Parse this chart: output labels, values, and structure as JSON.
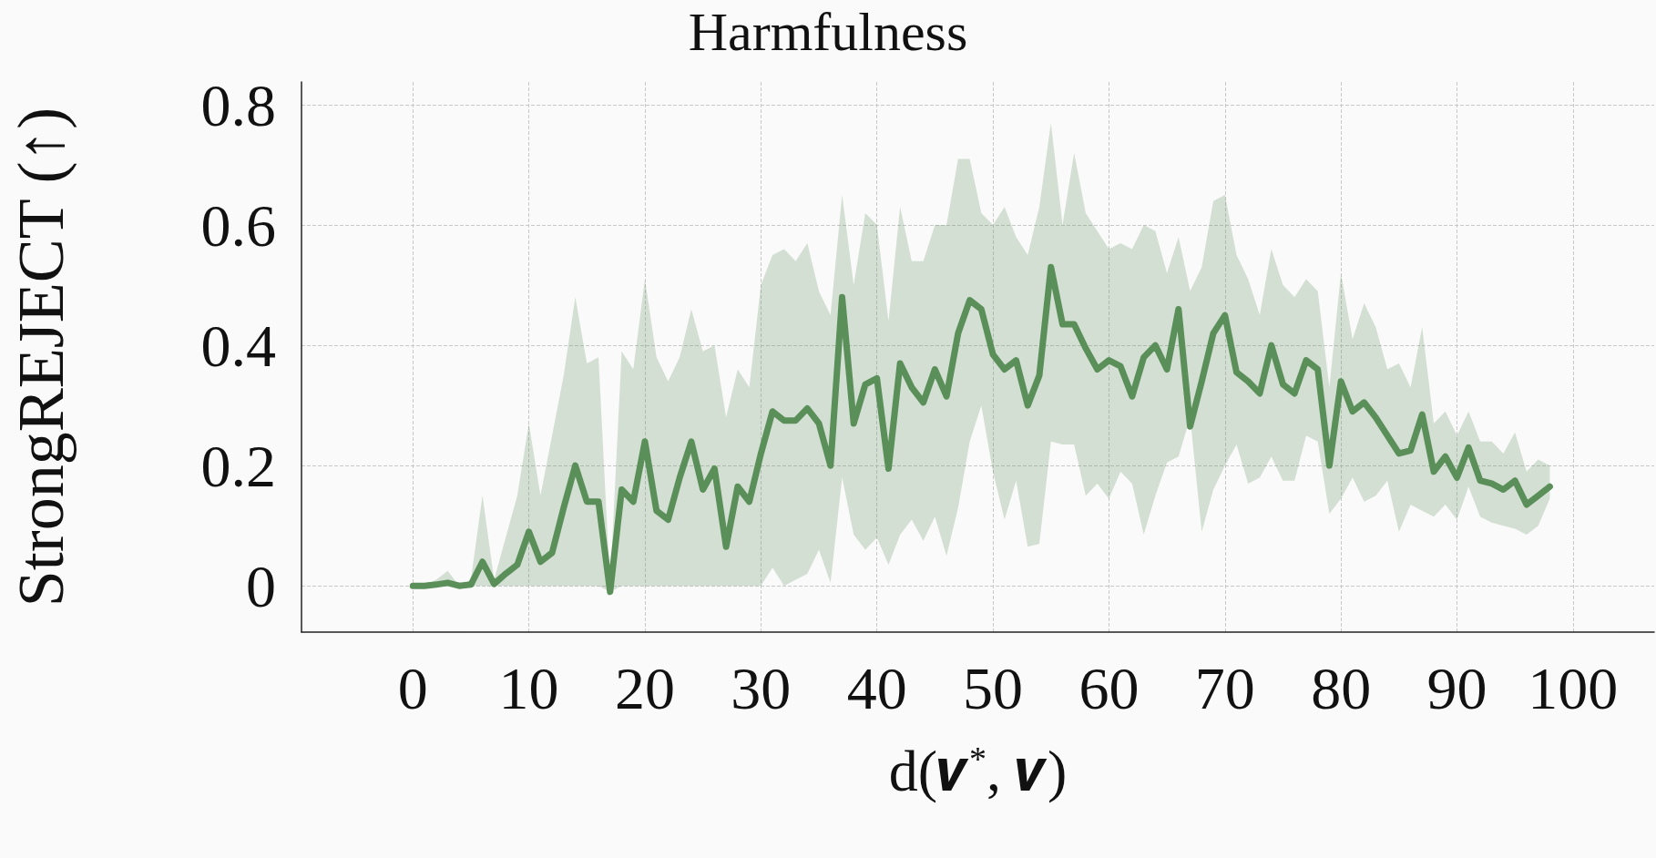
{
  "chart_data": {
    "type": "line",
    "title": "Harmfulness",
    "xlabel": "d(𝒗$^{*}$, 𝒗)",
    "ylabel": "StrongREJECT (↑)",
    "x": [
      0,
      1,
      2,
      3,
      4,
      5,
      6,
      7,
      8,
      9,
      10,
      11,
      12,
      13,
      14,
      15,
      16,
      17,
      18,
      19,
      20,
      21,
      22,
      23,
      24,
      25,
      26,
      27,
      28,
      29,
      30,
      31,
      32,
      33,
      34,
      35,
      36,
      37,
      38,
      39,
      40,
      41,
      42,
      43,
      44,
      45,
      46,
      47,
      48,
      49,
      50,
      51,
      52,
      53,
      54,
      55,
      56,
      57,
      58,
      59,
      60,
      61,
      62,
      63,
      64,
      65,
      66,
      67,
      68,
      69,
      70,
      71,
      72,
      73,
      74,
      75,
      76,
      77,
      78,
      79,
      80,
      81,
      82,
      83,
      84,
      85,
      86,
      87,
      88,
      89,
      90,
      91,
      92,
      93,
      94,
      95,
      96,
      97,
      98
    ],
    "series": [
      {
        "color": "#5a8f5a",
        "values": [
          0,
          0,
          0.002,
          0.005,
          0,
          0.002,
          0.04,
          0.003,
          0.02,
          0.035,
          0.09,
          0.04,
          0.055,
          0.13,
          0.2,
          0.14,
          0.14,
          -0.01,
          0.16,
          0.14,
          0.24,
          0.125,
          0.11,
          0.18,
          0.24,
          0.16,
          0.195,
          0.065,
          0.165,
          0.14,
          0.22,
          0.29,
          0.275,
          0.275,
          0.295,
          0.27,
          0.2,
          0.48,
          0.27,
          0.335,
          0.345,
          0.195,
          0.37,
          0.33,
          0.305,
          0.36,
          0.315,
          0.42,
          0.475,
          0.46,
          0.385,
          0.36,
          0.375,
          0.3,
          0.35,
          0.53,
          0.435,
          0.435,
          0.395,
          0.36,
          0.375,
          0.365,
          0.315,
          0.38,
          0.4,
          0.36,
          0.46,
          0.265,
          0.34,
          0.42,
          0.45,
          0.355,
          0.34,
          0.32,
          0.4,
          0.335,
          0.32,
          0.375,
          0.36,
          0.2,
          0.34,
          0.29,
          0.305,
          0.28,
          0.25,
          0.22,
          0.225,
          0.285,
          0.19,
          0.215,
          0.18,
          0.23,
          0.175,
          0.17,
          0.16,
          0.175,
          0.135,
          0.15,
          0.165
        ],
        "upper": [
          0,
          0,
          0.01,
          0.025,
          0,
          0.01,
          0.15,
          0.01,
          0.08,
          0.15,
          0.27,
          0.15,
          0.25,
          0.35,
          0.48,
          0.37,
          0.38,
          0,
          0.39,
          0.36,
          0.51,
          0.38,
          0.34,
          0.38,
          0.46,
          0.39,
          0.4,
          0.28,
          0.36,
          0.33,
          0.5,
          0.55,
          0.56,
          0.54,
          0.57,
          0.49,
          0.45,
          0.65,
          0.5,
          0.62,
          0.6,
          0.44,
          0.63,
          0.54,
          0.54,
          0.6,
          0.6,
          0.71,
          0.71,
          0.62,
          0.6,
          0.63,
          0.58,
          0.55,
          0.63,
          0.77,
          0.6,
          0.72,
          0.62,
          0.59,
          0.56,
          0.57,
          0.56,
          0.6,
          0.59,
          0.52,
          0.58,
          0.49,
          0.53,
          0.64,
          0.65,
          0.55,
          0.51,
          0.45,
          0.56,
          0.5,
          0.48,
          0.51,
          0.49,
          0.33,
          0.52,
          0.41,
          0.47,
          0.43,
          0.36,
          0.37,
          0.33,
          0.43,
          0.27,
          0.29,
          0.25,
          0.29,
          0.24,
          0.24,
          0.22,
          0.255,
          0.19,
          0.21,
          0.2
        ],
        "lower": [
          0,
          0,
          0,
          0,
          0,
          0,
          0,
          0,
          0,
          0,
          0,
          0,
          0,
          0,
          0,
          0,
          0,
          -0.01,
          0,
          0,
          0,
          0,
          0,
          0,
          0,
          0,
          0,
          0,
          0,
          0,
          0,
          0.03,
          0,
          0.01,
          0.02,
          0.06,
          0.005,
          0.18,
          0.085,
          0.06,
          0.08,
          0.035,
          0.085,
          0.11,
          0.075,
          0.115,
          0.05,
          0.13,
          0.24,
          0.3,
          0.19,
          0.11,
          0.175,
          0.065,
          0.07,
          0.24,
          0.235,
          0.235,
          0.15,
          0.17,
          0.145,
          0.19,
          0.17,
          0.085,
          0.15,
          0.205,
          0.215,
          0.28,
          0.09,
          0.16,
          0.2,
          0.235,
          0.17,
          0.18,
          0.215,
          0.175,
          0.175,
          0.25,
          0.24,
          0.12,
          0.145,
          0.18,
          0.14,
          0.15,
          0.175,
          0.09,
          0.135,
          0.125,
          0.115,
          0.135,
          0.11,
          0.165,
          0.115,
          0.105,
          0.1,
          0.095,
          0.085,
          0.1,
          0.145
        ]
      }
    ],
    "xlim": [
      -9.6,
      107
    ],
    "xticks": [
      0,
      10,
      20,
      30,
      40,
      50,
      60,
      70,
      80,
      90,
      100
    ],
    "ylim": [
      -0.077,
      0.838
    ],
    "yticks": [
      0,
      0.2,
      0.4,
      0.6,
      0.8
    ],
    "grid": true,
    "marker": "none",
    "line_style": "solid"
  }
}
